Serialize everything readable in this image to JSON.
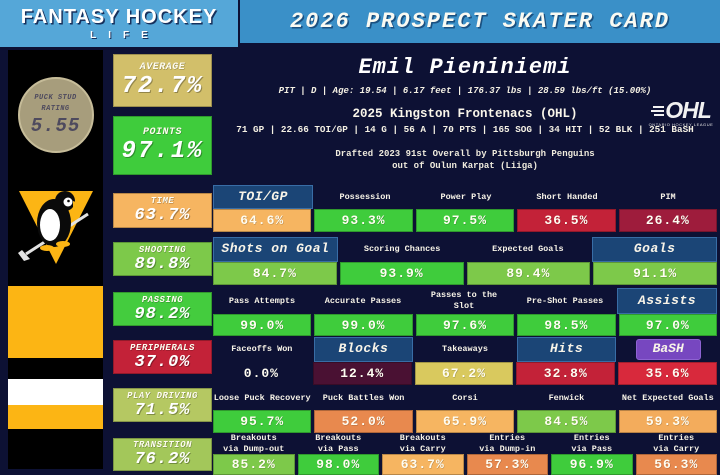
{
  "header": {
    "logo_line1": "FANTASY HOCKEY",
    "logo_line2": "LIFE",
    "title": "2026 PROSPECT SKATER CARD"
  },
  "puck_stud": {
    "label": "PUCK STUD RATING",
    "value": "5.55"
  },
  "player": {
    "name": "Emil Pieniniemi",
    "bio": "PIT | D | Age: 19.54 | 6.17 feet | 176.37 lbs | 28.59 lbs/ft  (15.00%)",
    "team": "2025 Kingston Frontenacs (OHL)",
    "season_stats": "71 GP | 22.66 TOI/GP | 14 G | 56 A | 70 PTS | 165 SOG | 34 HIT | 52 BLK | 251 BaSH",
    "drafted_line1": "Drafted 2023 91st Overall by Pittsburgh Penguins",
    "drafted_line2": "out of Oulun Karpat (Liiga)"
  },
  "league_logo": {
    "text": "OHL",
    "subtext": "ONTARIO HOCKEY LEAGUE"
  },
  "colors": {
    "navy": "#0D1134",
    "logo-blue": "#55A7D8",
    "banner-blue": "#3A90C8",
    "hl-blue": "#1B4576",
    "purple": "#7747C0",
    "gold": "#FCB514"
  },
  "chart_data": {
    "type": "table",
    "title": "2026 Prospect Skater Card - Emil Pieniniemi (percentile ratings)",
    "category_ratings": [
      {
        "label": "AVERAGE",
        "value": "72.7%",
        "color": "#D2BF6A",
        "large": true
      },
      {
        "label": "POINTS",
        "value": "97.1%",
        "color": "#3FCC3C",
        "large": true
      },
      {
        "label": "TIME",
        "value": "63.7%",
        "color": "#F6B561"
      },
      {
        "label": "SHOOTING",
        "value": "89.8%",
        "color": "#7DC94A"
      },
      {
        "label": "PASSING",
        "value": "98.2%",
        "color": "#44CC3E"
      },
      {
        "label": "PERIPHERALS",
        "value": "37.0%",
        "color": "#C32238"
      },
      {
        "label": "PLAY DRIVING",
        "value": "71.5%",
        "color": "#B5C862"
      },
      {
        "label": "TRANSITION",
        "value": "76.2%",
        "color": "#A3C75A"
      }
    ],
    "rows": [
      {
        "category": "TIME",
        "cells": [
          {
            "label": "TOI/GP",
            "header_style": "highlight",
            "value": "64.6%",
            "color": "#F6B561"
          },
          {
            "label": "Possession",
            "header_style": "plain",
            "value": "93.3%",
            "color": "#3FCC3C"
          },
          {
            "label": "Power Play",
            "header_style": "plain",
            "value": "97.5%",
            "color": "#3FCC3C"
          },
          {
            "label": "Short Handed",
            "header_style": "plain",
            "value": "36.5%",
            "color": "#C32238"
          },
          {
            "label": "PIM",
            "header_style": "plain",
            "value": "26.4%",
            "color": "#9E1C3C"
          }
        ]
      },
      {
        "category": "SHOOTING",
        "cells": [
          {
            "label": "Shots on Goal",
            "header_style": "highlight",
            "value": "84.7%",
            "color": "#7DC94A"
          },
          {
            "label": "Scoring Chances",
            "header_style": "plain",
            "value": "93.9%",
            "color": "#3FCC3C"
          },
          {
            "label": "Expected Goals",
            "header_style": "plain",
            "value": "89.4%",
            "color": "#7DC94A"
          },
          {
            "label": "Goals",
            "header_style": "highlight",
            "value": "91.1%",
            "color": "#7DC94A"
          }
        ]
      },
      {
        "category": "PASSING",
        "cells": [
          {
            "label": "Pass Attempts",
            "header_style": "plain",
            "value": "99.0%",
            "color": "#3FCC3C"
          },
          {
            "label": "Accurate Passes",
            "header_style": "plain",
            "value": "99.0%",
            "color": "#3FCC3C"
          },
          {
            "label": "Passes to the\nSlot",
            "header_style": "plain",
            "value": "97.6%",
            "color": "#3FCC3C"
          },
          {
            "label": "Pre-Shot Passes",
            "header_style": "plain",
            "value": "98.5%",
            "color": "#3FCC3C"
          },
          {
            "label": "Assists",
            "header_style": "highlight",
            "value": "97.0%",
            "color": "#3FCC3C"
          }
        ]
      },
      {
        "category": "PERIPHERALS",
        "cells": [
          {
            "label": "Faceoffs Won",
            "header_style": "plain",
            "value": "0.0%",
            "color": "none"
          },
          {
            "label": "Blocks",
            "header_style": "highlight",
            "value": "12.4%",
            "color": "#4A1133"
          },
          {
            "label": "Takeaways",
            "header_style": "plain",
            "value": "67.2%",
            "color": "#D9C95E"
          },
          {
            "label": "Hits",
            "header_style": "highlight",
            "value": "32.8%",
            "color": "#C32238"
          },
          {
            "label": "BaSH",
            "header_style": "purple",
            "value": "35.6%",
            "color": "#D8293C"
          }
        ]
      },
      {
        "category": "PLAY DRIVING",
        "cells": [
          {
            "label": "Loose Puck Recovery",
            "header_style": "plain",
            "value": "95.7%",
            "color": "#3FCC3C"
          },
          {
            "label": "Puck Battles Won",
            "header_style": "plain",
            "value": "52.0%",
            "color": "#E8894E"
          },
          {
            "label": "Corsi",
            "header_style": "plain",
            "value": "65.9%",
            "color": "#F6B561"
          },
          {
            "label": "Fenwick",
            "header_style": "plain",
            "value": "84.5%",
            "color": "#7DC94A"
          },
          {
            "label": "Net Expected Goals",
            "header_style": "plain",
            "value": "59.3%",
            "color": "#F3AC5C"
          }
        ]
      },
      {
        "category": "TRANSITION",
        "cells": [
          {
            "label": "Breakouts\nvia Dump-out",
            "header_style": "plain",
            "value": "85.2%",
            "color": "#7DC94A"
          },
          {
            "label": "Breakouts\nvia Pass",
            "header_style": "plain",
            "value": "98.0%",
            "color": "#3FCC3C"
          },
          {
            "label": "Breakouts\nvia Carry",
            "header_style": "plain",
            "value": "63.7%",
            "color": "#F6B561"
          },
          {
            "label": "Entries\nvia Dump-in",
            "header_style": "plain",
            "value": "57.3%",
            "color": "#E8894E"
          },
          {
            "label": "Entries\nvia Pass",
            "header_style": "plain",
            "value": "96.9%",
            "color": "#3FCC3C"
          },
          {
            "label": "Entries\nvia Carry",
            "header_style": "plain",
            "value": "56.3%",
            "color": "#E8894E"
          }
        ]
      }
    ]
  }
}
